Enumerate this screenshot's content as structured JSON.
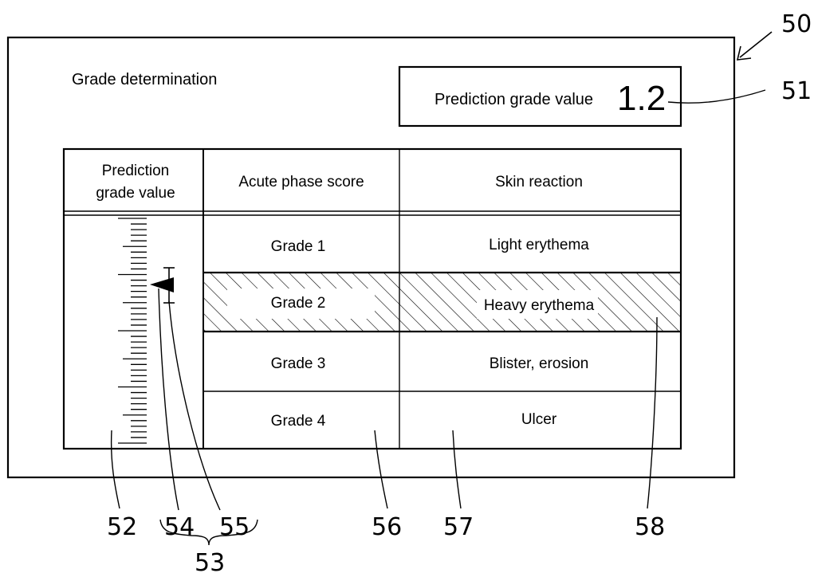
{
  "screen": {
    "title": "Grade determination",
    "prediction_box": {
      "label": "Prediction grade value",
      "value": "1.2"
    },
    "table": {
      "headers": {
        "pred_line1": "Prediction",
        "pred_line2": "grade value",
        "score": "Acute phase score",
        "reaction": "Skin reaction"
      },
      "rows": [
        {
          "score": "Grade 1",
          "reaction": "Light erythema",
          "highlighted": false
        },
        {
          "score": "Grade 2",
          "reaction": "Heavy erythema",
          "highlighted": true
        },
        {
          "score": "Grade 3",
          "reaction": "Blister, erosion",
          "highlighted": false
        },
        {
          "score": "Grade 4",
          "reaction": "Ulcer",
          "highlighted": false
        }
      ]
    },
    "indicator": {
      "grade_value": 1.2
    }
  },
  "reference_numerals": {
    "screen": "50",
    "prediction_box": "51",
    "scale": "52",
    "indicator_group": "53",
    "marker": "54",
    "error_bar": "55",
    "score_column": "56",
    "reaction_column": "57",
    "highlight": "58"
  }
}
